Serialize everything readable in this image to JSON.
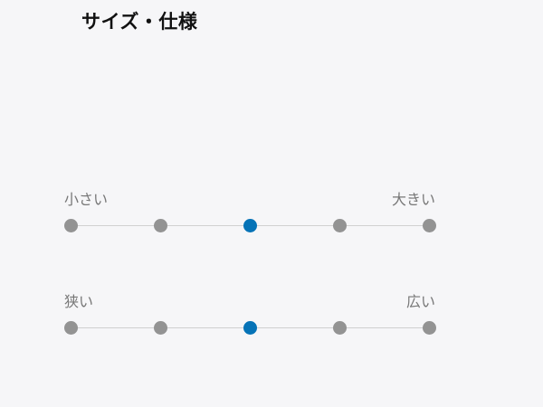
{
  "title": "サイズ・仕様",
  "accent_color": "#0673b7",
  "scales": [
    {
      "left_label": "小さい",
      "right_label": "大きい",
      "steps": 5,
      "selected": 3
    },
    {
      "left_label": "狭い",
      "right_label": "広い",
      "steps": 5,
      "selected": 3
    }
  ]
}
